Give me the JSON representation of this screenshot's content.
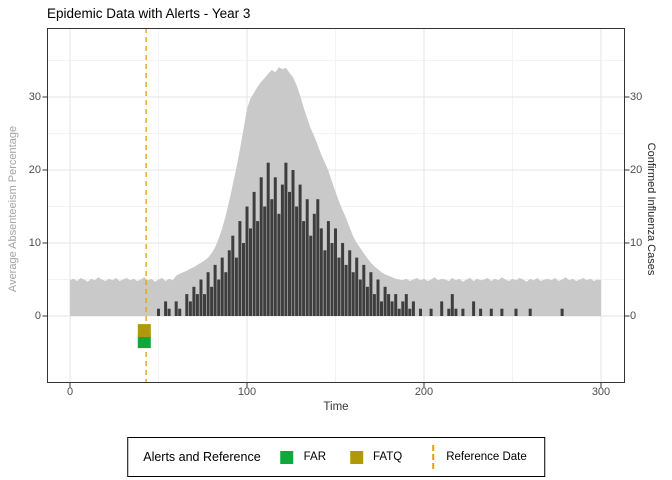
{
  "chart_data": {
    "type": "area+bar",
    "title": "Epidemic Data with Alerts - Year 3",
    "xlabel": "Time",
    "ylabel_left": "Average Absenteeism Percentage",
    "ylabel_right": "Confirmed Influenza Cases",
    "x_ticks": [
      0,
      100,
      200,
      300
    ],
    "x_minor_ticks": [
      50,
      150,
      250
    ],
    "y_ticks": [
      0,
      10,
      20,
      30
    ],
    "y_minor_ticks": [
      5,
      15,
      25,
      35
    ],
    "xlim": [
      -13,
      313.6
    ],
    "ylim": [
      -9.2,
      39.5
    ],
    "grid": true,
    "legend_position": "bottom",
    "x_start": 0,
    "x_step": 2,
    "series": [
      {
        "name": "Average Absenteeism Percentage",
        "type": "area",
        "axis": "left",
        "color": "#C9C9C9",
        "values": [
          4.9,
          5.1,
          4.8,
          5.2,
          5.0,
          4.7,
          5.1,
          4.9,
          5.3,
          5.0,
          4.8,
          5.1,
          4.9,
          5.2,
          4.8,
          5.0,
          5.2,
          4.9,
          5.1,
          4.8,
          5.0,
          5.3,
          4.9,
          5.1,
          4.7,
          5.0,
          5.2,
          4.8,
          5.1,
          4.9,
          5.5,
          5.8,
          6.0,
          6.2,
          6.5,
          6.7,
          7.0,
          7.3,
          7.6,
          8.0,
          8.6,
          9.4,
          10.6,
          12.0,
          13.8,
          15.8,
          18.0,
          20.3,
          22.8,
          25.6,
          28.4,
          29.8,
          30.6,
          31.4,
          32.1,
          32.6,
          33.2,
          33.7,
          33.4,
          34.1,
          33.8,
          34.0,
          33.3,
          32.7,
          31.6,
          30.2,
          28.6,
          27.1,
          25.7,
          24.6,
          23.4,
          22.1,
          21.0,
          19.9,
          18.4,
          17.0,
          15.7,
          14.5,
          13.4,
          12.1,
          10.9,
          10.0,
          9.3,
          8.6,
          7.9,
          7.3,
          6.8,
          6.4,
          6.0,
          5.7,
          5.5,
          5.3,
          5.1,
          5.0,
          4.9,
          5.1,
          4.8,
          5.0,
          5.2,
          4.9,
          5.1,
          4.8,
          5.0,
          5.3,
          4.9,
          5.1,
          5.0,
          4.8,
          5.2,
          4.9,
          5.1,
          4.7,
          5.0,
          5.2,
          4.8,
          5.1,
          4.9,
          5.0,
          5.2,
          4.8,
          5.1,
          4.9,
          5.3,
          5.0,
          4.8,
          5.1,
          4.9,
          5.2,
          5.0,
          4.7,
          5.1,
          4.9,
          5.2,
          4.8,
          5.0,
          5.1,
          4.9,
          5.2,
          4.8,
          5.0,
          5.3,
          4.9,
          5.1,
          4.8,
          5.0,
          5.2,
          4.9,
          5.1,
          4.8,
          5.0,
          4.9
        ]
      },
      {
        "name": "Confirmed Influenza Cases",
        "type": "bar",
        "axis": "right",
        "color": "#3E3E3E",
        "values": [
          0,
          0,
          0,
          0,
          0,
          0,
          0,
          0,
          0,
          0,
          0,
          0,
          0,
          0,
          0,
          0,
          0,
          0,
          0,
          0,
          0,
          0,
          0,
          0,
          0,
          1,
          0,
          2,
          1,
          0,
          2,
          1,
          0,
          3,
          2,
          4,
          3,
          5,
          3,
          6,
          4,
          7,
          5,
          8,
          6,
          9,
          11,
          8,
          13,
          10,
          15,
          12,
          17,
          13,
          19,
          15,
          21,
          16,
          19,
          14,
          18,
          21,
          17,
          20,
          15,
          18,
          13,
          16,
          11,
          14,
          16,
          12,
          9,
          13,
          10,
          12,
          8,
          10,
          7,
          9,
          6,
          8,
          5,
          7,
          4,
          6,
          3,
          5,
          2,
          4,
          3,
          2,
          3,
          1,
          2,
          3,
          1,
          2,
          0,
          1,
          0,
          0,
          1,
          0,
          0,
          2,
          0,
          1,
          3,
          1,
          0,
          1,
          0,
          0,
          2,
          0,
          1,
          0,
          0,
          1,
          0,
          0,
          1,
          0,
          0,
          0,
          1,
          0,
          0,
          0,
          1,
          0,
          0,
          0,
          0,
          0,
          0,
          0,
          0,
          1,
          0,
          0,
          0,
          0,
          0,
          0,
          0,
          0,
          0,
          0,
          0
        ]
      }
    ],
    "reference_line": {
      "x": 43,
      "color": "#E69F00",
      "style": "dashed",
      "label": "Reference Date"
    },
    "alerts": [
      {
        "label": "FAR",
        "x": 42,
        "y": -3.5,
        "color": "#10A83C"
      },
      {
        "label": "FATQ",
        "x": 42,
        "y": -2.0,
        "color": "#B0980C"
      }
    ]
  },
  "legend": {
    "title": "Alerts and Reference",
    "items": [
      {
        "label": "FAR",
        "type": "square",
        "color": "#10A83C"
      },
      {
        "label": "FATQ",
        "type": "square",
        "color": "#B0980C"
      },
      {
        "label": "Reference Date",
        "type": "dashed-line",
        "color": "#E69F00"
      }
    ]
  },
  "colors": {
    "area": "#C9C9C9",
    "bars": "#3E3E3E",
    "reference": "#E69F00",
    "grid_major": "#E6E6E6",
    "grid_minor": "#F3F3F3",
    "panel_border": "#333333",
    "axis_text": "#4D4D4D",
    "left_axis_title": "#A3A3A3",
    "right_axis_title": "#262626"
  }
}
